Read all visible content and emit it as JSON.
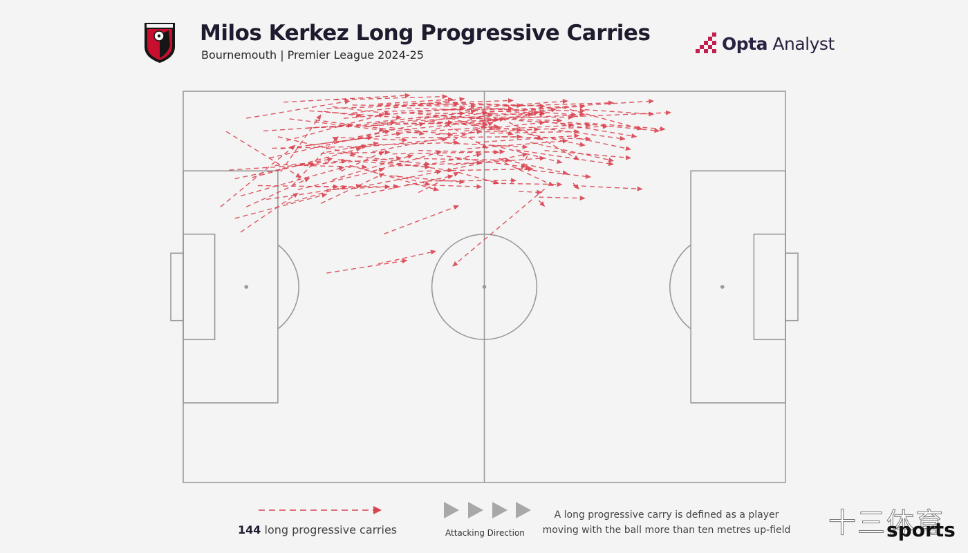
{
  "header": {
    "title": "Milos Kerkez Long Progressive Carries",
    "subtitle": "Bournemouth | Premier League 2024-25"
  },
  "brand": {
    "bold": "Opta",
    "light": " Analyst"
  },
  "club_crest": {
    "icon": "afc-bournemouth-crest-icon"
  },
  "legend": {
    "count": "144",
    "count_label": " long progressive carries",
    "direction_label": "Attacking Direction",
    "definition": "A long progressive carry is defined as a player moving with the ball more than ten metres up-field"
  },
  "watermark": {
    "cn": "十三体育",
    "en": "sports"
  },
  "colors": {
    "arrow": "#d9434f",
    "pitch_line": "#999999",
    "background": "#f4f4f4",
    "direction_arrow": "#a8a8a8",
    "title": "#1e1b2e"
  },
  "chart_data": {
    "type": "scatter",
    "title": "Milos Kerkez Long Progressive Carries",
    "pitch": {
      "length": 105,
      "width": 68,
      "attacking_direction": "left-to-right"
    },
    "total_carries": 144,
    "series": [
      {
        "name": "long progressive carries",
        "carries": [
          [
            11,
            4.7,
            29,
            1.7
          ],
          [
            17.5,
            1.9,
            39.5,
            0.7
          ],
          [
            26.5,
            1.5,
            46,
            0.9
          ],
          [
            34,
            2.4,
            57.5,
            1.6
          ],
          [
            39,
            2.9,
            63,
            3.8
          ],
          [
            29.5,
            3.8,
            49,
            1.3
          ],
          [
            41,
            4.5,
            68,
            4.5
          ],
          [
            43,
            5.6,
            70,
            4.0
          ],
          [
            32,
            6.2,
            51,
            3.4
          ],
          [
            25,
            3.0,
            48,
            2.2
          ],
          [
            40,
            5.2,
            62,
            3.7
          ],
          [
            52,
            3.7,
            70,
            2.6
          ],
          [
            46.5,
            4.7,
            57.5,
            7.5
          ],
          [
            38.5,
            6.7,
            56,
            4.8
          ],
          [
            59,
            3.1,
            82,
            1.7
          ],
          [
            46,
            5.8,
            53,
            9.9
          ],
          [
            55.5,
            4.7,
            62.5,
            8.4
          ],
          [
            53,
            6.7,
            68,
            5.9
          ],
          [
            37,
            8.1,
            59,
            7.9
          ],
          [
            15,
            11.6,
            36,
            6.9
          ],
          [
            19,
            16.4,
            27,
            7.9
          ],
          [
            12,
            15.0,
            31,
            9.9
          ],
          [
            16,
            12.9,
            28.5,
            12.1
          ],
          [
            27.5,
            13.9,
            35,
            10.5
          ],
          [
            29,
            11.2,
            43,
            12.7
          ],
          [
            33,
            10.5,
            52,
            6.9
          ],
          [
            30.5,
            7.9,
            42,
            5.6
          ],
          [
            31,
            16.6,
            45,
            13.9
          ],
          [
            36,
            14.7,
            49,
            15.8
          ],
          [
            42,
            12.9,
            52,
            10.9
          ],
          [
            39,
            16.2,
            52,
            16.6
          ],
          [
            47,
            13.5,
            60,
            10.9
          ],
          [
            24,
            6.3,
            47,
            5.4
          ],
          [
            18,
            8.6,
            35,
            4.0
          ],
          [
            21.5,
            6.4,
            37,
            5.4
          ],
          [
            58.5,
            5.1,
            71,
            5.9
          ],
          [
            50.5,
            3.1,
            70,
            3.4
          ],
          [
            60,
            7.4,
            70,
            9.4
          ],
          [
            47,
            8.5,
            54,
            5.4
          ],
          [
            24,
            10.8,
            36,
            10.6
          ],
          [
            49.5,
            10.0,
            67,
            8.6
          ],
          [
            54,
            9.4,
            66,
            12.4
          ],
          [
            46,
            9.0,
            60,
            9.7
          ],
          [
            58,
            10.2,
            75,
            12.7
          ],
          [
            60,
            6.7,
            74,
            6.1
          ],
          [
            41,
            3.8,
            61,
            4.0
          ],
          [
            34,
            5.5,
            53,
            5.7
          ],
          [
            28,
            4.7,
            49,
            2.9
          ],
          [
            45.5,
            3.3,
            67,
            1.7
          ],
          [
            23,
            5.0,
            42,
            7.4
          ],
          [
            29,
            12.9,
            44.5,
            17.2
          ],
          [
            40,
            2.1,
            59,
            2.5
          ],
          [
            35,
            3.5,
            57.5,
            3.0
          ],
          [
            50,
            4.7,
            66,
            5.1
          ],
          [
            44,
            6.6,
            54,
            3.9
          ],
          [
            52,
            5.2,
            63,
            3.9
          ],
          [
            17,
            14.0,
            24,
            4.1
          ],
          [
            7.5,
            7.0,
            20.5,
            15.0
          ],
          [
            17,
            10.0,
            33,
            8.0
          ],
          [
            26,
            2.7,
            36,
            3.9
          ],
          [
            51,
            8.9,
            69,
            7.7
          ],
          [
            31,
            9.4,
            48,
            8.9
          ],
          [
            36.5,
            10.9,
            56,
            10.5
          ],
          [
            58,
            13.4,
            71,
            14.9
          ],
          [
            48,
            14.1,
            55,
            16.0
          ],
          [
            42.5,
            15.6,
            58,
            15.5
          ],
          [
            36,
            13.0,
            52,
            12.4
          ],
          [
            23,
            16.6,
            36,
            16.6
          ],
          [
            18,
            19.5,
            28.5,
            16.5
          ],
          [
            11,
            20.1,
            22,
            15.1
          ],
          [
            6.5,
            20.1,
            19.5,
            9.4
          ],
          [
            13,
            16.4,
            27,
            16.6
          ],
          [
            24,
            19.5,
            35,
            14.3
          ],
          [
            42,
            5.3,
            53,
            3.7
          ],
          [
            51,
            5.7,
            65,
            3.1
          ],
          [
            44.5,
            11.1,
            60.5,
            13.3
          ],
          [
            56,
            12.4,
            64.5,
            16.4
          ],
          [
            36,
            6.3,
            47,
            7.6
          ],
          [
            32,
            5.5,
            49,
            3.8
          ],
          [
            24.5,
            3.5,
            31,
            4.3
          ],
          [
            27,
            11.9,
            43,
            13.2
          ],
          [
            33,
            13.9,
            45,
            10.5
          ],
          [
            41,
            10.3,
            55,
            10.6
          ],
          [
            21,
            12.9,
            32,
            13.2
          ],
          [
            26,
            15.4,
            40,
            11.1
          ],
          [
            16.5,
            7.9,
            30,
            11.0
          ],
          [
            8,
            13.7,
            23,
            12.7
          ],
          [
            9,
            15.2,
            26,
            11.7
          ],
          [
            22,
            9.4,
            38,
            7.3
          ],
          [
            37.5,
            7.3,
            55,
            6.1
          ],
          [
            44,
            7.5,
            62,
            6.6
          ],
          [
            55.5,
            7.9,
            71,
            8.3
          ],
          [
            60.5,
            8.9,
            75,
            12.1
          ],
          [
            64,
            6.6,
            77,
            8.3
          ],
          [
            63,
            5.2,
            79,
            7.9
          ],
          [
            66,
            2.8,
            80,
            6.6
          ],
          [
            67,
            5.4,
            83,
            6.9
          ],
          [
            56,
            2.6,
            75,
            2.0
          ],
          [
            53,
            2.9,
            68.5,
            4.1
          ],
          [
            47,
            2.0,
            63,
            2.6
          ],
          [
            43,
            5.2,
            59,
            6.8
          ],
          [
            34,
            2.2,
            47,
            1.4
          ],
          [
            29.5,
            2.4,
            51,
            2.6
          ],
          [
            22,
            3.4,
            38,
            4.6
          ],
          [
            18.5,
            4.8,
            35,
            6.8
          ],
          [
            14,
            6.9,
            29.5,
            5.9
          ],
          [
            20,
            17.1,
            35,
            13.5
          ],
          [
            14.5,
            18.8,
            31,
            16.4
          ],
          [
            9,
            22.1,
            25,
            17.9
          ],
          [
            10,
            18.2,
            28,
            13.2
          ],
          [
            20,
            12.9,
            38,
            11.6
          ],
          [
            25,
            10.6,
            34,
            9.0
          ],
          [
            29,
            9.9,
            46,
            8.3
          ],
          [
            33,
            12.0,
            47,
            13.8
          ],
          [
            40.5,
            11.7,
            57,
            12.0
          ],
          [
            47,
            12.8,
            63,
            11.6
          ],
          [
            55,
            11.7,
            67,
            14.3
          ],
          [
            62,
            8.0,
            69,
            11.9
          ],
          [
            63,
            10.3,
            78,
            11.6
          ],
          [
            70,
            3.2,
            82,
            4.0
          ],
          [
            70,
            5.5,
            84,
            6.6
          ],
          [
            68,
            4.4,
            85,
            3.7
          ],
          [
            53.5,
            7.3,
            69,
            7.0
          ],
          [
            49,
            6.9,
            63,
            5.4
          ],
          [
            38,
            3.7,
            55,
            5.0
          ],
          [
            26,
            8.0,
            39,
            8.5
          ],
          [
            15.5,
            9.9,
            32,
            9.6
          ],
          [
            41,
            13.9,
            61,
            13.5
          ],
          [
            30,
            18.2,
            47,
            14.7
          ],
          [
            54,
            16.0,
            66,
            16.2
          ],
          [
            58.5,
            17.4,
            62.5,
            17.6
          ],
          [
            62,
            18.4,
            70,
            18.6
          ],
          [
            60,
            11.2,
            59,
            13.5
          ],
          [
            41,
            17.6,
            48,
            14.1
          ],
          [
            37,
            14.7,
            43,
            16.2
          ],
          [
            10,
            24.5,
            20,
            17.7
          ],
          [
            35,
            24.8,
            48,
            19.9
          ],
          [
            63,
            17.0,
            47,
            30.4
          ],
          [
            34,
            30.0,
            44,
            27.8
          ],
          [
            25,
            31.6,
            39,
            29.4
          ],
          [
            25,
            17.1,
            37.5,
            16.5
          ],
          [
            68,
            16.4,
            80,
            17.0
          ],
          [
            69,
            8.2,
            78,
            10.1
          ],
          [
            62,
            19.0,
            63,
            20.0
          ],
          [
            68,
            16.0,
            69,
            17.0
          ]
        ]
      }
    ]
  }
}
